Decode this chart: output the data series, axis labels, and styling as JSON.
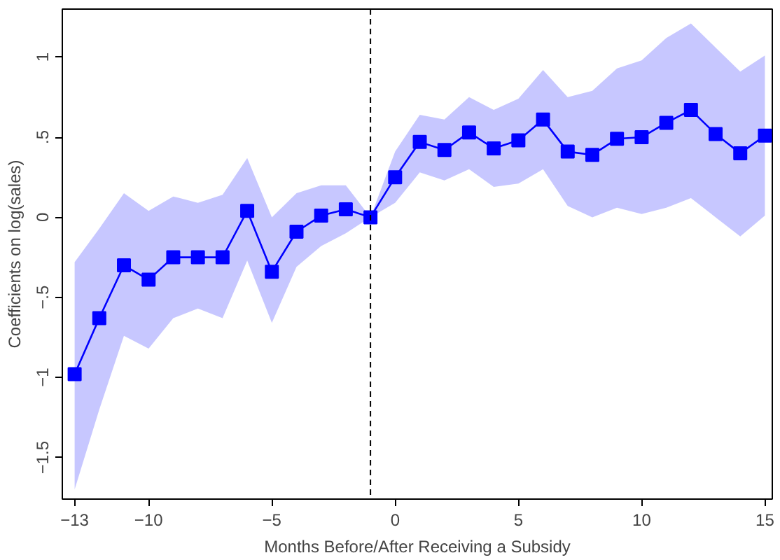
{
  "chart_data": {
    "type": "line",
    "xlabel": "Months Before/After Receiving a Subsidy",
    "ylabel": "Coefficients on log(sales)",
    "x": [
      -13,
      -12,
      -11,
      -10,
      -9,
      -8,
      -7,
      -6,
      -5,
      -4,
      -3,
      -2,
      -1,
      0,
      1,
      2,
      3,
      4,
      5,
      6,
      7,
      8,
      9,
      10,
      11,
      12,
      13,
      14,
      15
    ],
    "series": [
      {
        "color": "#0000ff",
        "values": [
          -0.98,
          -0.63,
          -0.3,
          -0.39,
          -0.25,
          -0.25,
          -0.25,
          0.04,
          -0.34,
          -0.09,
          0.01,
          0.05,
          0,
          0.25,
          0.47,
          0.42,
          0.53,
          0.43,
          0.48,
          0.61,
          0.41,
          0.39,
          0.49,
          0.5,
          0.59,
          0.67,
          0.52,
          0.4,
          0.51
        ],
        "upper": [
          -0.28,
          -0.07,
          0.15,
          0.04,
          0.13,
          0.09,
          0.14,
          0.37,
          0,
          0.15,
          0.2,
          0.2,
          0,
          0.41,
          0.64,
          0.61,
          0.75,
          0.67,
          0.74,
          0.92,
          0.75,
          0.79,
          0.93,
          0.98,
          1.12,
          1.21,
          1.06,
          0.91,
          1.01
        ],
        "lower": [
          -1.7,
          -1.2,
          -0.74,
          -0.82,
          -0.63,
          -0.57,
          -0.63,
          -0.27,
          -0.66,
          -0.31,
          -0.18,
          -0.1,
          0,
          0.09,
          0.28,
          0.23,
          0.3,
          0.19,
          0.21,
          0.3,
          0.07,
          0,
          0.06,
          0.02,
          0.06,
          0.12,
          0,
          -0.12,
          0.01
        ]
      }
    ],
    "xlim": [
      -13.5,
      15.3
    ],
    "ylim": [
      -1.76,
      1.3
    ],
    "xticks": [
      -13,
      -10,
      -5,
      0,
      5,
      10,
      15
    ],
    "yticks": [
      {
        "value": -1.5,
        "label": "−1.5"
      },
      {
        "value": -1,
        "label": "−1"
      },
      {
        "value": -0.5,
        "label": "−.5"
      },
      {
        "value": 0,
        "label": "0"
      },
      {
        "value": 0.5,
        "label": ".5"
      },
      {
        "value": 1,
        "label": "1"
      }
    ],
    "ref_lines": [
      {
        "axis": "x",
        "value": -1,
        "label": null,
        "color": "#000000",
        "line_style": "dashed"
      }
    ],
    "marker": "square",
    "line_style": "solid",
    "grid": false
  }
}
